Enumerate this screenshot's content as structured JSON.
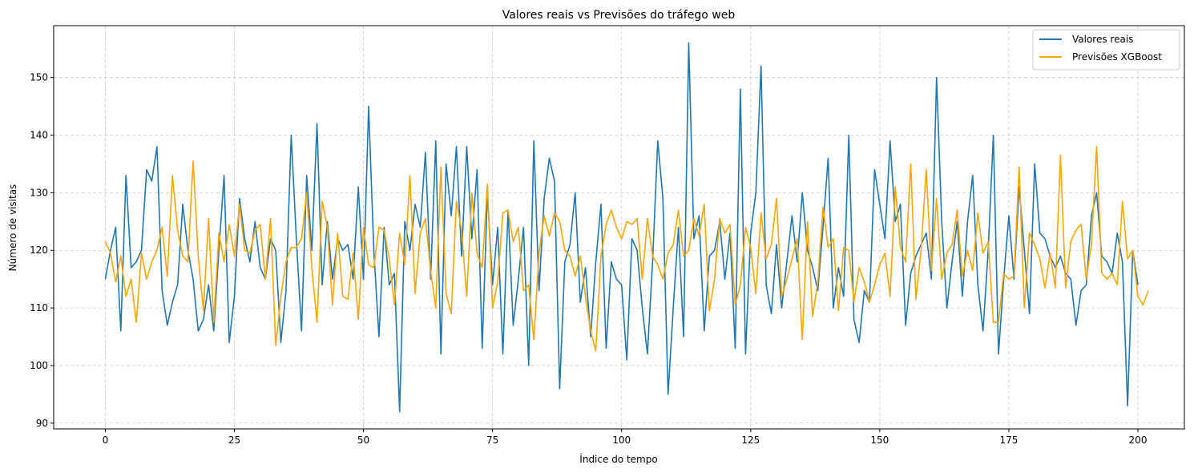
{
  "chart_data": {
    "type": "line",
    "title": "Valores reais vs Previsões do tráfego web",
    "xlabel": "Índice do tempo",
    "ylabel": "Número de visitas",
    "xlim": [
      -10,
      209
    ],
    "ylim": [
      89,
      159
    ],
    "x_ticks": [
      0,
      25,
      50,
      75,
      100,
      125,
      150,
      175,
      200
    ],
    "y_ticks": [
      90,
      100,
      110,
      120,
      130,
      140,
      150
    ],
    "grid": true,
    "legend_position": "top-right",
    "series": [
      {
        "name": "Valores reais",
        "color": "#1f77b4",
        "x_start": 0,
        "values": [
          115,
          120,
          124,
          106,
          133,
          117,
          118,
          120,
          134,
          132,
          138,
          113,
          107,
          111,
          114,
          128,
          120,
          115,
          106,
          108,
          114,
          106,
          120,
          133,
          104,
          112,
          129,
          122,
          118,
          125,
          117,
          115,
          122,
          120,
          104,
          113,
          140,
          122,
          106,
          133,
          120,
          142,
          114,
          125,
          115,
          122,
          120,
          121,
          115,
          131,
          115,
          145,
          120,
          105,
          124,
          114,
          116,
          92,
          125,
          120,
          128,
          124,
          137,
          115,
          139,
          102,
          135,
          126,
          138,
          119,
          138,
          122,
          134,
          103,
          130,
          114,
          124,
          102,
          127,
          107,
          115,
          124,
          100,
          139,
          113,
          129,
          136,
          132,
          96,
          118,
          121,
          130,
          111,
          117,
          105,
          118,
          128,
          103,
          118,
          115,
          114,
          101,
          122,
          120,
          110,
          102,
          118,
          139,
          129,
          95,
          110,
          124,
          105,
          156,
          122,
          126,
          106,
          119,
          120,
          125,
          115,
          123,
          103,
          148,
          102,
          123,
          130,
          152,
          114,
          109,
          121,
          110,
          118,
          126,
          118,
          130,
          120,
          117,
          113,
          124,
          136,
          110,
          117,
          112,
          140,
          108,
          104,
          113,
          111,
          134,
          128,
          122,
          139,
          125,
          128,
          107,
          116,
          119,
          121,
          123,
          115,
          150,
          125,
          110,
          118,
          125,
          112,
          125,
          133,
          114,
          106,
          120,
          140,
          102,
          115,
          126,
          115,
          131,
          120,
          109,
          135,
          123,
          122,
          119,
          117,
          119,
          116,
          115,
          107,
          113,
          114,
          126,
          130,
          119,
          118,
          116,
          123,
          118,
          93,
          120,
          114
        ]
      },
      {
        "name": "Previsões XGBoost",
        "color": "#ffa500",
        "x_start": 0,
        "values": [
          121.5,
          119.5,
          114.5,
          119,
          112,
          115,
          107.5,
          119.5,
          115,
          118,
          120,
          124,
          115.5,
          133,
          123.5,
          119,
          118,
          135.5,
          119,
          109.5,
          125.5,
          107.5,
          123,
          118,
          124.5,
          119,
          128,
          120,
          119.5,
          123.5,
          124.5,
          115,
          125.5,
          103.5,
          112,
          118,
          120.5,
          120.5,
          122,
          130,
          117,
          107.5,
          128.5,
          124,
          110.5,
          123,
          112,
          111.5,
          119.5,
          108,
          124,
          117.5,
          117,
          124,
          123.5,
          118.5,
          110.5,
          123,
          117.5,
          133,
          112.5,
          123,
          125.5,
          116.5,
          110,
          134.5,
          112.5,
          109,
          128.5,
          123.5,
          112,
          130,
          119.5,
          117,
          131.5,
          110,
          114.5,
          126.5,
          127,
          121.5,
          124,
          113,
          114,
          104.5,
          119.5,
          126,
          122.5,
          126.5,
          125,
          120,
          119,
          115.5,
          119,
          112,
          106,
          102.5,
          119,
          124.5,
          127,
          124,
          122,
          125,
          124.5,
          125.5,
          115,
          125.5,
          119,
          117.5,
          115,
          119.5,
          121,
          127,
          119,
          120,
          125.5,
          122.5,
          128,
          109.5,
          115,
          125.5,
          123,
          124.5,
          110.5,
          114,
          124,
          120.5,
          112.5,
          126.5,
          118.5,
          121,
          129,
          112,
          115,
          118.5,
          122,
          104.5,
          125,
          108.5,
          114.5,
          127.5,
          120.5,
          122,
          109.5,
          120.5,
          120,
          111,
          117,
          114.5,
          111,
          114,
          117.5,
          119.5,
          112,
          131,
          120.5,
          118,
          135,
          111.5,
          120,
          134,
          116.5,
          129,
          115,
          119.5,
          121,
          127,
          115.5,
          120,
          116.5,
          126.5,
          119.5,
          121.5,
          107.5,
          107.5,
          116,
          115,
          115.5,
          134.5,
          110,
          123,
          121,
          118.5,
          113.5,
          119.5,
          113.5,
          136.5,
          113.5,
          121.5,
          123.5,
          124.5,
          115,
          121,
          138,
          116,
          115,
          116,
          114,
          128.5,
          118.5,
          120,
          112,
          110.5,
          113
        ]
      }
    ]
  }
}
